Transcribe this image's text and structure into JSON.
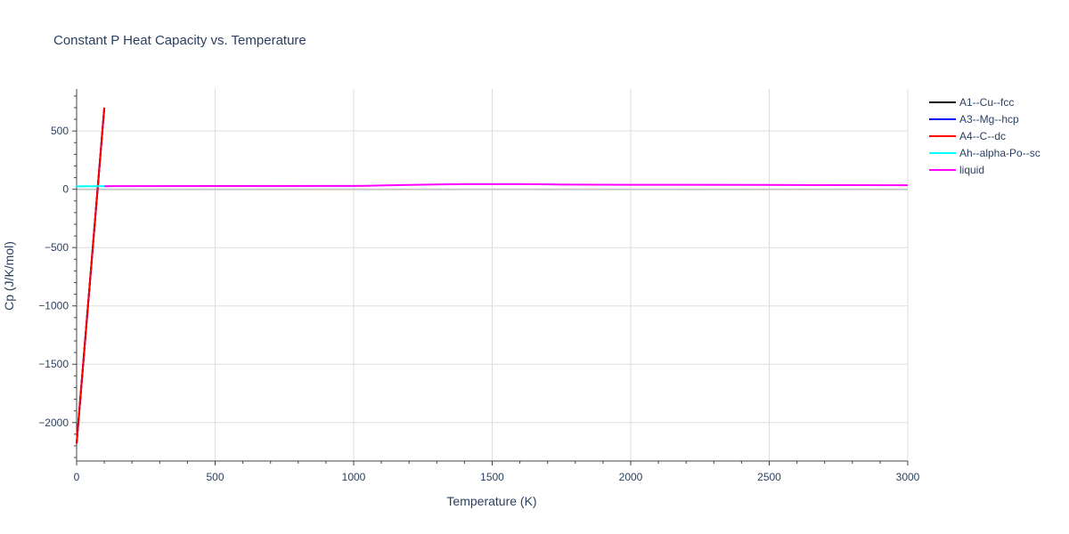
{
  "chart_data": {
    "type": "line",
    "title": "Constant P Heat Capacity vs. Temperature",
    "xlabel": "Temperature (K)",
    "ylabel": "Cp (J/K/mol)",
    "xlim": [
      0,
      3000
    ],
    "ylim": [
      -2330,
      860
    ],
    "x_ticks": [
      0,
      500,
      1000,
      1500,
      2000,
      2500,
      3000
    ],
    "x_tick_labels": [
      "0",
      "500",
      "1000",
      "1500",
      "2000",
      "2500",
      "3000"
    ],
    "y_ticks": [
      -2000,
      -1500,
      -1000,
      -500,
      0,
      500
    ],
    "y_tick_labels": [
      "−2000",
      "−1500",
      "−1000",
      "−500",
      "0",
      "500"
    ],
    "grid": true,
    "legend_position": "right",
    "series": [
      {
        "name": "A1--Cu--fcc",
        "color": "#000000",
        "x": [
          0,
          100
        ],
        "y": [
          -2180,
          700
        ]
      },
      {
        "name": "A3--Mg--hcp",
        "color": "#0000ff",
        "x": [
          0,
          100
        ],
        "y": [
          -2180,
          700
        ]
      },
      {
        "name": "A4--C--dc",
        "color": "#ff0000",
        "x": [
          0,
          100
        ],
        "y": [
          -2180,
          700
        ]
      },
      {
        "name": "Ah--alpha-Po--sc",
        "color": "#00ffff",
        "x": [
          0,
          50,
          100
        ],
        "y": [
          25,
          26,
          27
        ]
      },
      {
        "name": "liquid",
        "color": "#ff00ff",
        "x": [
          100,
          500,
          1000,
          1050,
          1100,
          1200,
          1300,
          1400,
          1500,
          1600,
          1700,
          1750,
          2000,
          2500,
          3000
        ],
        "y": [
          27,
          28,
          29,
          30,
          33,
          37,
          41,
          44,
          44,
          44,
          43,
          40,
          39,
          37,
          35
        ]
      }
    ]
  }
}
